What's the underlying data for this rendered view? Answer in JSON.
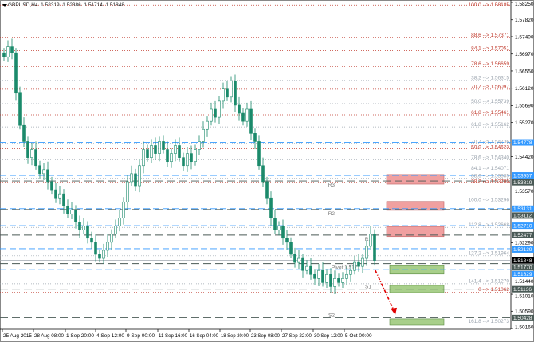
{
  "title": "GBPUSD,H4  1.52319  1.52386  1.51714  1.51848",
  "colors": {
    "candle": "#1b8a6b",
    "fib_red": "#c0392b",
    "fib_gray": "#9aa3ad",
    "blue_line": "#3399ff",
    "dark_line": "#4a5a56",
    "resistance_zone": "#f0a0a0",
    "support_zone": "#a8cf8a",
    "arrow": "#e00000",
    "current": "#000000"
  },
  "chart_data": {
    "type": "candlestick",
    "symbol": "GBPUSD",
    "timeframe": "H4",
    "ohlc_header": {
      "open": 1.52319,
      "high": 1.52386,
      "low": 1.51714,
      "close": 1.51848
    },
    "ylim": [
      1.5016,
      1.5825
    ],
    "closes": [
      1.569,
      1.5715,
      1.57,
      1.56,
      1.552,
      1.548,
      1.544,
      1.546,
      1.542,
      1.54,
      1.541,
      1.538,
      1.536,
      1.534,
      1.535,
      1.532,
      1.53,
      1.531,
      1.528,
      1.526,
      1.527,
      1.524,
      1.523,
      1.52,
      1.519,
      1.521,
      1.523,
      1.525,
      1.527,
      1.529,
      1.533,
      1.538,
      1.54,
      1.537,
      1.542,
      1.546,
      1.544,
      1.547,
      1.545,
      1.548,
      1.546,
      1.543,
      1.545,
      1.547,
      1.544,
      1.542,
      1.545,
      1.543,
      1.546,
      1.548,
      1.551,
      1.553,
      1.556,
      1.554,
      1.558,
      1.561,
      1.559,
      1.563,
      1.557,
      1.555,
      1.553,
      1.556,
      1.55,
      1.548,
      1.542,
      1.538,
      1.534,
      1.529,
      1.526,
      1.527,
      1.524,
      1.523,
      1.52,
      1.518,
      1.519,
      1.516,
      1.517,
      1.515,
      1.514,
      1.516,
      1.513,
      1.515,
      1.512,
      1.514,
      1.513,
      1.514,
      1.515,
      1.516,
      1.518,
      1.517,
      1.519,
      1.522,
      1.525,
      1.5185
    ],
    "price_axis_labels": [
      "1.58250",
      "1.57820",
      "1.57400",
      "1.56970",
      "1.56550",
      "1.56120",
      "1.55690",
      "1.55270",
      "1.54420",
      "1.53570",
      "1.52290",
      "1.51440",
      "1.51010",
      "1.50590",
      "1.50160"
    ],
    "time_axis_labels": [
      "25 Aug 2015",
      "28 Aug 08:00",
      "1 Sep 20:00",
      "4 Sep 12:00",
      "9 Sep 00:00",
      "11 Sep 16:00",
      "16 Sep 04:00",
      "18 Sep 20:00",
      "23 Sep 08:00",
      "27 Sep 22:00",
      "30 Sep 12:00",
      "5 Oct 00:00"
    ],
    "fib_levels": [
      {
        "label": "100.0  -->  1.58185",
        "price": 1.58185,
        "set": "red"
      },
      {
        "label": "88.6  -->  1.57371",
        "price": 1.57371,
        "set": "red"
      },
      {
        "label": "84.1  -->  1.57051",
        "price": 1.57051,
        "set": "red"
      },
      {
        "label": "78.6  -->  1.56659",
        "price": 1.56659,
        "set": "red"
      },
      {
        "label": "38.2  -->  1.56315",
        "price": 1.56315,
        "set": "gray"
      },
      {
        "label": "70.7  -->  1.56097",
        "price": 1.56097,
        "set": "red"
      },
      {
        "label": "50.0  -->  1.55739",
        "price": 1.55739,
        "set": "gray"
      },
      {
        "label": "61.8  -->  1.55461",
        "price": 1.55461,
        "set": "red"
      },
      {
        "label": "61.8  -->  1.55162",
        "price": 1.55162,
        "set": "gray"
      },
      {
        "label": "70.7  -->  1.54736",
        "price": 1.54736,
        "set": "gray"
      },
      {
        "label": "50.0  -->  1.54623",
        "price": 1.54623,
        "set": "red"
      },
      {
        "label": "78.6  -->  1.54340",
        "price": 1.5434,
        "set": "gray"
      },
      {
        "label": "84.1  -->  1.54071",
        "price": 1.54071,
        "set": "gray"
      },
      {
        "label": "88.6  -->  1.53885",
        "price": 1.53885,
        "set": "gray"
      },
      {
        "label": "38.2  -->  1.53785",
        "price": 1.53785,
        "set": "red"
      },
      {
        "label": "100.0  -->  1.53296",
        "price": 1.53296,
        "set": "gray"
      },
      {
        "label": "112.8  -->  1.52668",
        "price": 1.52668,
        "set": "gray"
      },
      {
        "label": "127.2  -->  1.51964",
        "price": 1.51964,
        "set": "gray"
      },
      {
        "label": "141.4  -->  1.51270",
        "price": 1.5127,
        "set": "gray"
      },
      {
        "label": "0  -->  1.51062",
        "price": 1.51062,
        "set": "red"
      },
      {
        "label": "161.8  -->  1.50273",
        "price": 1.50273,
        "set": "gray"
      }
    ],
    "price_tags": [
      {
        "text": "1.54778",
        "price": 1.54778,
        "kind": "blue"
      },
      {
        "text": "1.53957",
        "price": 1.53957,
        "kind": "blue"
      },
      {
        "text": "1.53819",
        "price": 1.53819,
        "kind": "dark"
      },
      {
        "text": "1.53131",
        "price": 1.53131,
        "kind": "blue"
      },
      {
        "text": "1.53112",
        "price": 1.53112,
        "kind": "dark"
      },
      {
        "text": "1.52710",
        "price": 1.5271,
        "kind": "blue"
      },
      {
        "text": "1.52477",
        "price": 1.52477,
        "kind": "dark"
      },
      {
        "text": "1.52139",
        "price": 1.52139,
        "kind": "blue"
      },
      {
        "text": "1.51848",
        "price": 1.51848,
        "kind": "current"
      },
      {
        "text": "1.51770",
        "price": 1.5177,
        "kind": "dark"
      },
      {
        "text": "1.51629",
        "price": 1.51629,
        "kind": "blue"
      },
      {
        "text": "1.51136",
        "price": 1.51136,
        "kind": "dark"
      },
      {
        "text": "1.50428",
        "price": 1.50428,
        "kind": "dark"
      }
    ],
    "pivots": [
      {
        "label": "R3",
        "price": 1.53819
      },
      {
        "label": "R2",
        "price": 1.53112
      },
      {
        "label": "R1",
        "price": 1.52477
      },
      {
        "label": "Pivot 1.5177",
        "price": 1.5177
      },
      {
        "label": "S1",
        "price": 1.51136
      },
      {
        "label": "S2",
        "price": 1.50428
      }
    ],
    "zones": [
      {
        "kind": "resistance",
        "top": 1.5398,
        "bottom": 1.5374
      },
      {
        "kind": "resistance",
        "top": 1.5331,
        "bottom": 1.5309
      },
      {
        "kind": "resistance",
        "top": 1.5269,
        "bottom": 1.5244
      },
      {
        "kind": "support",
        "top": 1.5172,
        "bottom": 1.5151
      },
      {
        "kind": "support",
        "top": 1.5123,
        "bottom": 1.5105
      },
      {
        "kind": "support",
        "top": 1.504,
        "bottom": 1.5024
      }
    ],
    "forecast_arrow": {
      "from": 1.516,
      "to": 1.505
    }
  }
}
